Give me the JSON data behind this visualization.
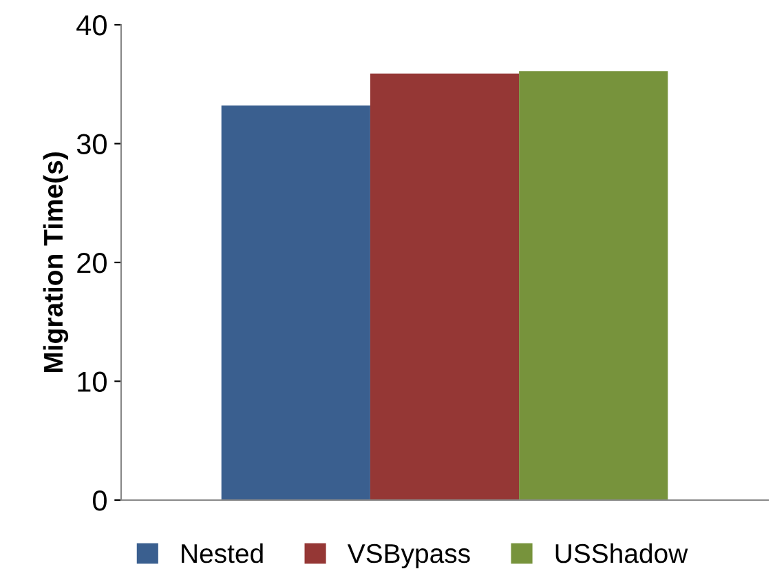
{
  "chart_data": {
    "type": "bar",
    "ylabel": "Migration Time(s)",
    "categories": [
      null
    ],
    "series": [
      {
        "name": "Nested",
        "color": "#3a5f8f",
        "values": [
          33.2
        ]
      },
      {
        "name": "VSBypass",
        "color": "#953735",
        "values": [
          35.9
        ]
      },
      {
        "name": "USShadow",
        "color": "#77933c",
        "values": [
          36.1
        ]
      }
    ],
    "ylim": [
      0,
      40
    ],
    "yticks": [
      0,
      10,
      20,
      30,
      40
    ],
    "grid": false,
    "legend": "bottom"
  }
}
